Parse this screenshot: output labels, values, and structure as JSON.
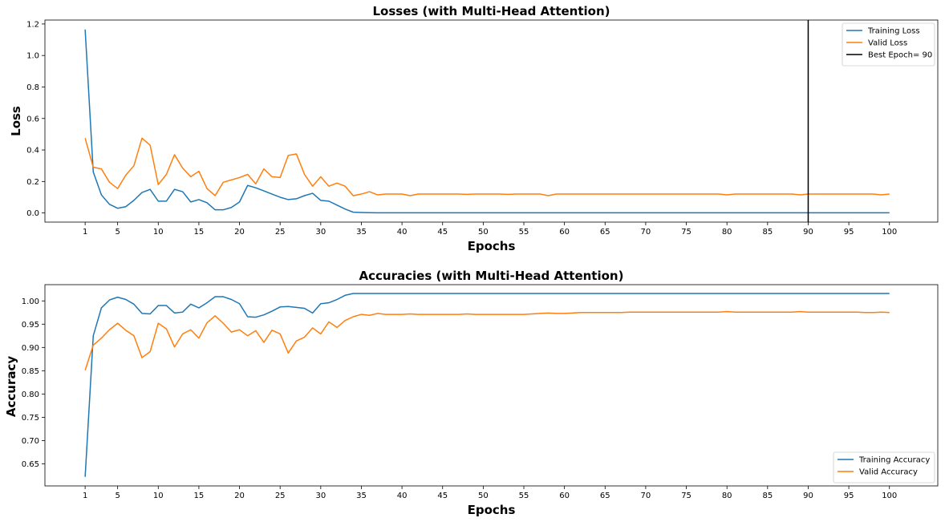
{
  "chart_data": [
    {
      "type": "line",
      "title": "Losses (with Multi-Head Attention)",
      "xlabel": "Epochs",
      "ylabel": "Loss",
      "x": [
        1,
        2,
        3,
        4,
        5,
        6,
        7,
        8,
        9,
        10,
        11,
        12,
        13,
        14,
        15,
        16,
        17,
        18,
        19,
        20,
        21,
        22,
        23,
        24,
        25,
        26,
        27,
        28,
        29,
        30,
        31,
        32,
        33,
        34,
        35,
        36,
        37,
        38,
        39,
        40,
        41,
        42,
        43,
        44,
        45,
        46,
        47,
        48,
        49,
        50,
        51,
        52,
        53,
        54,
        55,
        56,
        57,
        58,
        59,
        60,
        61,
        62,
        63,
        64,
        65,
        66,
        67,
        68,
        69,
        70,
        71,
        72,
        73,
        74,
        75,
        76,
        77,
        78,
        79,
        80,
        81,
        82,
        83,
        84,
        85,
        86,
        87,
        88,
        89,
        90,
        91,
        92,
        93,
        94,
        95,
        96,
        97,
        98,
        99,
        100
      ],
      "xticks": [
        1,
        5,
        10,
        15,
        20,
        25,
        30,
        35,
        40,
        45,
        50,
        55,
        60,
        65,
        70,
        75,
        80,
        85,
        90,
        95,
        100
      ],
      "xtick_labels": [
        "1",
        "5",
        "10",
        "15",
        "20",
        "25",
        "30",
        "35",
        "40",
        "45",
        "50",
        "55",
        "60",
        "65",
        "70",
        "75",
        "80",
        "85",
        "90",
        "95",
        "100"
      ],
      "xlim": [
        -3.95,
        105.95
      ],
      "ylim": [
        -0.058,
        1.225
      ],
      "yticks": [
        0.0,
        0.2,
        0.4,
        0.6,
        0.8,
        1.0,
        1.2
      ],
      "ytick_labels": [
        "0.0",
        "0.2",
        "0.4",
        "0.6",
        "0.8",
        "1.0",
        "1.2"
      ],
      "series": [
        {
          "name": "Training Loss",
          "color": "#1f77b4",
          "values": [
            1.165,
            0.26,
            0.115,
            0.055,
            0.03,
            0.04,
            0.08,
            0.13,
            0.15,
            0.075,
            0.075,
            0.15,
            0.135,
            0.07,
            0.085,
            0.065,
            0.02,
            0.02,
            0.035,
            0.07,
            0.175,
            0.16,
            0.14,
            0.12,
            0.1,
            0.085,
            0.09,
            0.11,
            0.125,
            0.08,
            0.075,
            0.05,
            0.025,
            0.005,
            0.003,
            0.002,
            0.001,
            0.001,
            0.001,
            0.001,
            0.001,
            0.001,
            0.001,
            0.001,
            0.001,
            0.001,
            0.001,
            0.001,
            0.001,
            0.001,
            0.001,
            0.001,
            0.001,
            0.001,
            0.001,
            0.001,
            0.001,
            0.001,
            0.001,
            0.001,
            0.001,
            0.001,
            0.001,
            0.001,
            0.001,
            0.001,
            0.001,
            0.001,
            0.001,
            0.001,
            0.001,
            0.001,
            0.001,
            0.001,
            0.001,
            0.001,
            0.001,
            0.001,
            0.001,
            0.001,
            0.001,
            0.001,
            0.001,
            0.001,
            0.001,
            0.001,
            0.001,
            0.001,
            0.001,
            0.001,
            0.001,
            0.001,
            0.001,
            0.001,
            0.001,
            0.001,
            0.001,
            0.001,
            0.001,
            0.001
          ]
        },
        {
          "name": "Valid Loss",
          "color": "#ff7f0e",
          "values": [
            0.475,
            0.29,
            0.28,
            0.195,
            0.155,
            0.24,
            0.3,
            0.475,
            0.43,
            0.18,
            0.245,
            0.37,
            0.285,
            0.23,
            0.265,
            0.155,
            0.11,
            0.195,
            0.21,
            0.225,
            0.245,
            0.185,
            0.28,
            0.23,
            0.225,
            0.365,
            0.375,
            0.245,
            0.17,
            0.23,
            0.17,
            0.19,
            0.17,
            0.11,
            0.12,
            0.135,
            0.115,
            0.12,
            0.12,
            0.12,
            0.11,
            0.12,
            0.12,
            0.12,
            0.12,
            0.12,
            0.12,
            0.118,
            0.12,
            0.12,
            0.12,
            0.12,
            0.118,
            0.12,
            0.12,
            0.12,
            0.12,
            0.11,
            0.12,
            0.12,
            0.12,
            0.12,
            0.12,
            0.12,
            0.12,
            0.12,
            0.12,
            0.12,
            0.12,
            0.12,
            0.12,
            0.12,
            0.12,
            0.12,
            0.12,
            0.12,
            0.12,
            0.12,
            0.12,
            0.115,
            0.12,
            0.12,
            0.12,
            0.12,
            0.12,
            0.12,
            0.12,
            0.12,
            0.115,
            0.12,
            0.12,
            0.12,
            0.12,
            0.12,
            0.12,
            0.12,
            0.12,
            0.12,
            0.115,
            0.12
          ]
        }
      ],
      "vline": {
        "x": 90,
        "name": "Best Epoch= 90",
        "color": "#000000"
      },
      "legend": "top-right",
      "grid": false
    },
    {
      "type": "line",
      "title": "Accuracies (with Multi-Head Attention)",
      "xlabel": "Epochs",
      "ylabel": "Accuracy",
      "x": [
        1,
        2,
        3,
        4,
        5,
        6,
        7,
        8,
        9,
        10,
        11,
        12,
        13,
        14,
        15,
        16,
        17,
        18,
        19,
        20,
        21,
        22,
        23,
        24,
        25,
        26,
        27,
        28,
        29,
        30,
        31,
        32,
        33,
        34,
        35,
        36,
        37,
        38,
        39,
        40,
        41,
        42,
        43,
        44,
        45,
        46,
        47,
        48,
        49,
        50,
        51,
        52,
        53,
        54,
        55,
        56,
        57,
        58,
        59,
        60,
        61,
        62,
        63,
        64,
        65,
        66,
        67,
        68,
        69,
        70,
        71,
        72,
        73,
        74,
        75,
        76,
        77,
        78,
        79,
        80,
        81,
        82,
        83,
        84,
        85,
        86,
        87,
        88,
        89,
        90,
        91,
        92,
        93,
        94,
        95,
        96,
        97,
        98,
        99,
        100
      ],
      "xticks": [
        1,
        5,
        10,
        15,
        20,
        25,
        30,
        35,
        40,
        45,
        50,
        55,
        60,
        65,
        70,
        75,
        80,
        85,
        90,
        95,
        100
      ],
      "xtick_labels": [
        "1",
        "5",
        "10",
        "15",
        "20",
        "25",
        "30",
        "35",
        "40",
        "45",
        "50",
        "55",
        "60",
        "65",
        "70",
        "75",
        "80",
        "85",
        "90",
        "95",
        "100"
      ],
      "xlim": [
        -3.95,
        105.95
      ],
      "ylim": [
        0.6025,
        1.0349
      ],
      "yticks": [
        0.65,
        0.7,
        0.75,
        0.8,
        0.85,
        0.9,
        0.95,
        1.0
      ],
      "ytick_labels": [
        "0.65",
        "0.70",
        "0.75",
        "0.80",
        "0.85",
        "0.90",
        "0.95",
        "1.00"
      ],
      "series": [
        {
          "name": "Training Accuracy",
          "color": "#1f77b4",
          "values": [
            0.622,
            0.925,
            0.985,
            1.002,
            1.008,
            1.003,
            0.993,
            0.973,
            0.972,
            0.99,
            0.99,
            0.974,
            0.976,
            0.993,
            0.985,
            0.996,
            1.009,
            1.009,
            1.003,
            0.994,
            0.966,
            0.965,
            0.97,
            0.978,
            0.987,
            0.988,
            0.986,
            0.984,
            0.974,
            0.994,
            0.996,
            1.003,
            1.012,
            1.016,
            1.016,
            1.016,
            1.016,
            1.016,
            1.016,
            1.016,
            1.016,
            1.016,
            1.016,
            1.016,
            1.016,
            1.016,
            1.016,
            1.016,
            1.016,
            1.016,
            1.016,
            1.016,
            1.016,
            1.016,
            1.016,
            1.016,
            1.016,
            1.016,
            1.016,
            1.016,
            1.016,
            1.016,
            1.016,
            1.016,
            1.016,
            1.016,
            1.016,
            1.016,
            1.016,
            1.016,
            1.016,
            1.016,
            1.016,
            1.016,
            1.016,
            1.016,
            1.016,
            1.016,
            1.016,
            1.016,
            1.016,
            1.016,
            1.016,
            1.016,
            1.016,
            1.016,
            1.016,
            1.016,
            1.016,
            1.016,
            1.016,
            1.016,
            1.016,
            1.016,
            1.016,
            1.016,
            1.016,
            1.016,
            1.016,
            1.016
          ]
        },
        {
          "name": "Valid Accuracy",
          "color": "#ff7f0e",
          "values": [
            0.851,
            0.905,
            0.92,
            0.938,
            0.952,
            0.937,
            0.925,
            0.878,
            0.891,
            0.952,
            0.94,
            0.901,
            0.929,
            0.938,
            0.92,
            0.953,
            0.968,
            0.952,
            0.933,
            0.938,
            0.925,
            0.936,
            0.911,
            0.937,
            0.929,
            0.888,
            0.914,
            0.922,
            0.942,
            0.929,
            0.955,
            0.943,
            0.958,
            0.966,
            0.971,
            0.969,
            0.973,
            0.971,
            0.971,
            0.971,
            0.972,
            0.971,
            0.971,
            0.971,
            0.971,
            0.971,
            0.971,
            0.972,
            0.971,
            0.971,
            0.971,
            0.971,
            0.971,
            0.971,
            0.971,
            0.972,
            0.973,
            0.974,
            0.973,
            0.973,
            0.974,
            0.975,
            0.975,
            0.975,
            0.975,
            0.975,
            0.975,
            0.976,
            0.976,
            0.976,
            0.976,
            0.976,
            0.976,
            0.976,
            0.976,
            0.976,
            0.976,
            0.976,
            0.976,
            0.977,
            0.976,
            0.976,
            0.976,
            0.976,
            0.976,
            0.976,
            0.976,
            0.976,
            0.977,
            0.976,
            0.976,
            0.976,
            0.976,
            0.976,
            0.976,
            0.976,
            0.975,
            0.975,
            0.976,
            0.975
          ]
        }
      ],
      "legend": "bottom-right",
      "grid": false
    }
  ]
}
